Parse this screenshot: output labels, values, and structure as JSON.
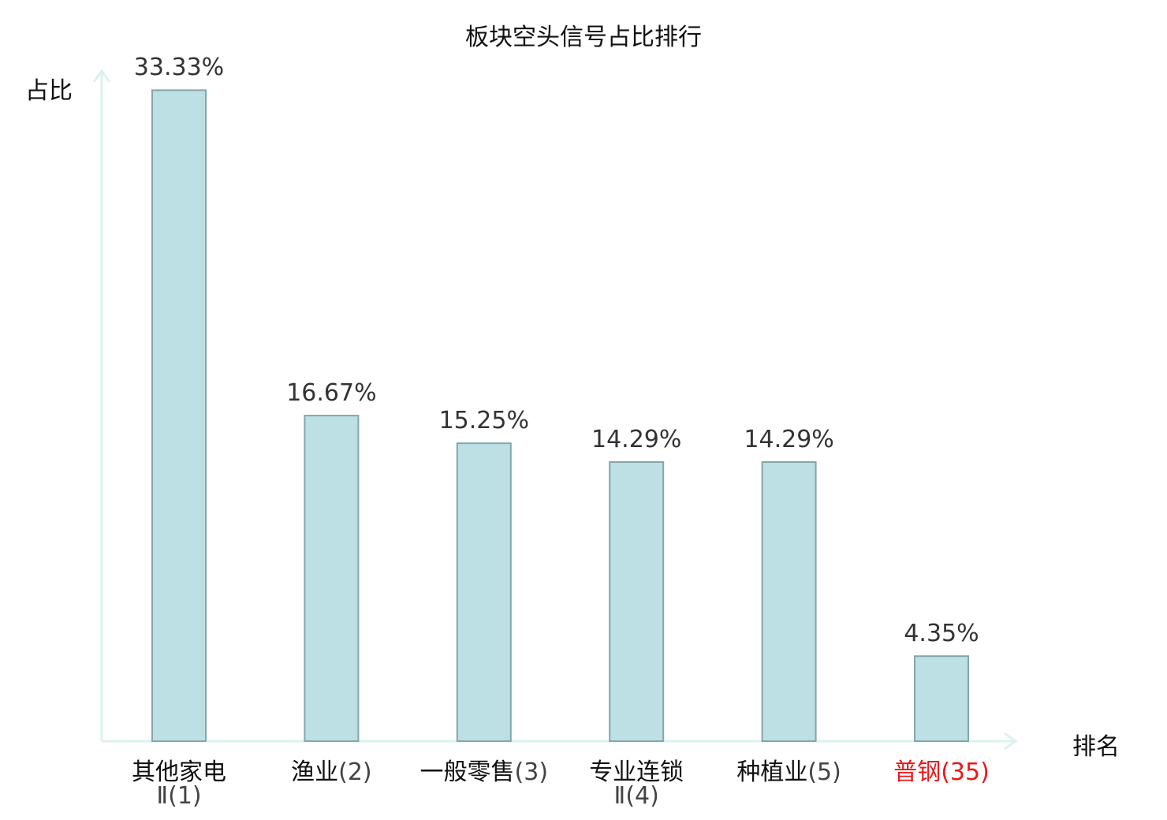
{
  "chart_data": {
    "type": "bar",
    "title": "板块空头信号占比排行",
    "ylabel": "占比",
    "xlabel": "排名",
    "categories": [
      {
        "name": "其他家电",
        "name_line2": "Ⅱ",
        "rank": "(1)",
        "highlight": false
      },
      {
        "name": "渔业",
        "name_line2": "",
        "rank": "(2)",
        "highlight": false
      },
      {
        "name": "一般零售",
        "name_line2": "",
        "rank": "(3)",
        "highlight": false
      },
      {
        "name": "专业连锁",
        "name_line2": "Ⅱ",
        "rank": "(4)",
        "highlight": false
      },
      {
        "name": "种植业",
        "name_line2": "",
        "rank": "(5)",
        "highlight": false
      },
      {
        "name": "普钢",
        "name_line2": "",
        "rank": "(35)",
        "highlight": true
      }
    ],
    "values": [
      33.33,
      16.67,
      15.25,
      14.29,
      14.29,
      4.35
    ],
    "value_labels": [
      "33.33%",
      "16.67%",
      "15.25%",
      "14.29%",
      "14.29%",
      "4.35%"
    ],
    "ylim": [
      0,
      35
    ],
    "grid": false,
    "colors": {
      "bar_fill": "#bce0e3",
      "bar_stroke": "#85a6a8",
      "axis": "#dcf2ef",
      "highlight": "#e8191b"
    }
  }
}
